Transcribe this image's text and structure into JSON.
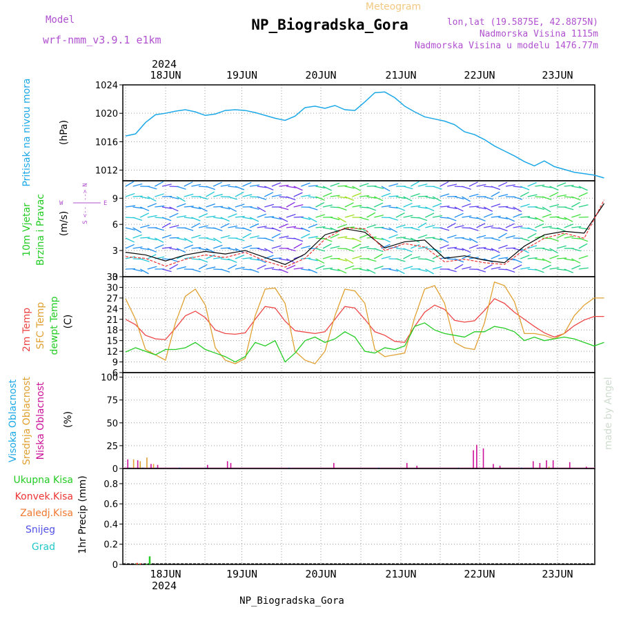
{
  "header": {
    "meteogram_label": "Meteogram",
    "station_title": "NP_Biogradska_Gora",
    "model_label": "Model",
    "model_name": "wrf-nmm_v3.9.1 e1km",
    "lonlat": "lon,lat (19.5875E, 42.8875N)",
    "elevation": "Nadmorska Visina 1115m",
    "model_elevation": "Nadmorska Visina u modelu 1476.77m",
    "year_top": "2024",
    "year_bottom": "2024",
    "footer_station": "NP_Biogradska_Gora",
    "watermark": "made by Angel"
  },
  "day_labels": [
    "18JUN",
    "19JUN",
    "20JUN",
    "21JUN",
    "22JUN",
    "23JUN"
  ],
  "compass": {
    "n": "N",
    "s": "S",
    "e": "E",
    "w": "W",
    "arrow_left": "<--",
    "arrow_right": "-->"
  },
  "colors": {
    "pressure": "#1ba8e8",
    "rain": "#22cc22",
    "conv": "#ee3333",
    "frozen": "#f07830",
    "snow": "#5050e8",
    "grad": "#20c8c8",
    "t2m": "#ee4444",
    "sfc": "#e0a030",
    "dewpt": "#22cc22",
    "high_cloud": "#1ba8e8",
    "mid_cloud": "#e0a030",
    "low_cloud": "#cc1199",
    "model_text": "#b050d0"
  },
  "chart_data": [
    {
      "type": "line",
      "name": "pressure",
      "ylabel_lines": [
        "Pritisak na nivou mora",
        "(hPa)"
      ],
      "ylim": [
        1010.5,
        1024
      ],
      "yticks": [
        "1012",
        "1016",
        "1020",
        "1024"
      ],
      "x_hours": [
        0,
        3,
        6,
        9,
        12,
        15,
        18,
        21,
        24,
        27,
        30,
        33,
        36,
        39,
        42,
        45,
        48,
        51,
        54,
        57,
        60,
        63,
        66,
        69,
        72,
        75,
        78,
        81,
        84,
        87,
        90,
        93,
        96,
        99,
        102,
        105,
        108,
        111,
        114,
        117,
        120,
        123,
        126,
        129,
        135,
        141,
        144
      ],
      "values": [
        1016.8,
        1017.1,
        1018.7,
        1019.8,
        1020.0,
        1020.3,
        1020.5,
        1020.2,
        1019.7,
        1019.9,
        1020.4,
        1020.5,
        1020.4,
        1020.1,
        1019.7,
        1019.3,
        1019.0,
        1019.6,
        1020.8,
        1021.0,
        1020.7,
        1021.1,
        1020.5,
        1020.4,
        1021.6,
        1022.9,
        1023.0,
        1022.2,
        1021.0,
        1020.2,
        1019.5,
        1019.2,
        1018.9,
        1018.4,
        1017.4,
        1017.0,
        1016.3,
        1015.4,
        1014.7,
        1014.0,
        1013.2,
        1012.6,
        1013.3,
        1012.5,
        1011.7,
        1011.3,
        1010.9
      ]
    },
    {
      "type": "line",
      "name": "wind",
      "ylabel_lines": [
        "10m Vjetar",
        "Brzina i Pravac",
        "(m/s)"
      ],
      "ylim": [
        0,
        11
      ],
      "yticks": [
        "0",
        "3",
        "6",
        "9"
      ],
      "x_hours": [
        0,
        6,
        12,
        18,
        24,
        30,
        36,
        42,
        48,
        54,
        60,
        66,
        72,
        78,
        84,
        90,
        96,
        102,
        108,
        114,
        120,
        126,
        132,
        138,
        144
      ],
      "values": [
        2.8,
        2.5,
        1.8,
        2.5,
        2.9,
        2.6,
        3.0,
        2.2,
        1.4,
        2.6,
        4.8,
        5.5,
        5.1,
        3.3,
        4.0,
        4.2,
        2.1,
        2.4,
        1.9,
        1.6,
        3.5,
        4.8,
        5.2,
        5.0,
        8.4
      ],
      "gust_values": [
        2.3,
        2.1,
        1.2,
        2.0,
        2.5,
        2.2,
        2.8,
        1.8,
        1.1,
        2.1,
        4.3,
        5.6,
        5.5,
        3.0,
        3.8,
        3.4,
        1.7,
        2.0,
        1.6,
        1.4,
        3.1,
        4.4,
        5.0,
        4.4,
        8.8
      ]
    },
    {
      "type": "line",
      "name": "temperature",
      "ylabel_lines": [
        "2m Temp",
        "SFC Temp",
        "dewpt Temp",
        "(C)"
      ],
      "ylim": [
        6,
        33
      ],
      "yticks": [
        "6",
        "9",
        "12",
        "15",
        "18",
        "21",
        "24",
        "27",
        "30",
        "33"
      ],
      "x_hours": [
        0,
        3,
        6,
        9,
        12,
        15,
        18,
        21,
        24,
        27,
        30,
        33,
        36,
        39,
        42,
        45,
        48,
        51,
        54,
        57,
        60,
        63,
        66,
        69,
        72,
        75,
        78,
        81,
        84,
        87,
        90,
        93,
        96,
        99,
        102,
        105,
        108,
        111,
        114,
        117,
        120,
        123,
        126,
        129,
        132,
        135,
        138,
        141,
        144
      ],
      "series": [
        {
          "name": "2m Temp",
          "values": [
            21,
            19.5,
            16.5,
            15.5,
            15.3,
            18.5,
            22,
            23.3,
            21.5,
            18,
            17,
            16.8,
            17.2,
            21,
            24.6,
            24.2,
            20.5,
            17.8,
            17.4,
            17,
            17.5,
            21,
            24.6,
            24.2,
            21,
            17.5,
            16.5,
            14.8,
            14.5,
            19,
            23,
            25,
            23.8,
            20.7,
            20.2,
            20.6,
            23.5,
            26.8,
            25.5,
            23,
            21,
            19,
            17.2,
            16,
            17,
            19.2,
            20.8,
            21.8,
            21.8
          ]
        },
        {
          "name": "SFC Temp",
          "values": [
            26.8,
            21,
            12.5,
            11,
            9.5,
            20,
            27.5,
            29.5,
            25,
            13,
            9.5,
            8.5,
            10,
            22,
            29.5,
            29.8,
            25.5,
            12,
            9.5,
            8.5,
            12,
            22,
            29.5,
            29,
            25.5,
            12.5,
            10.5,
            11,
            11.5,
            21.5,
            29.5,
            30.5,
            25.5,
            14.5,
            13,
            12.5,
            20,
            31.5,
            30.5,
            26,
            17,
            17,
            16.5,
            15.5,
            17,
            22,
            25,
            27,
            27
          ]
        },
        {
          "name": "dewpt Temp",
          "values": [
            11.8,
            13,
            12,
            11,
            12.5,
            12.5,
            13,
            14.5,
            12.5,
            11.5,
            10.5,
            9,
            10.5,
            14.5,
            13.5,
            15,
            9,
            11.5,
            15,
            16,
            14.5,
            15.5,
            17.5,
            16,
            12,
            11.5,
            13,
            12.5,
            13.5,
            19,
            20,
            18,
            17,
            16.5,
            16,
            17.5,
            17.5,
            19,
            18.5,
            17.5,
            15,
            16,
            15,
            15.5,
            16,
            15.5,
            14.5,
            13.5,
            14.5
          ]
        }
      ]
    },
    {
      "type": "bar",
      "name": "clouds",
      "ylabel_lines": [
        "Visoka Oblacnost",
        "Srednja Oblacnost",
        "Niska Oblacnost",
        "(%)"
      ],
      "ylim": [
        0,
        105
      ],
      "yticks": [
        "0",
        "25",
        "50",
        "75",
        "100"
      ],
      "series": [
        {
          "name": "Visoka Oblacnost",
          "x_hours": [
            1,
            5,
            9,
            16,
            24,
            49,
            76,
            100,
            119,
            122
          ],
          "values": [
            1,
            1,
            1,
            1,
            1,
            1,
            1,
            1,
            1,
            1
          ]
        },
        {
          "name": "Srednja Oblacnost",
          "x_hours": [
            2,
            4,
            6,
            8,
            127
          ],
          "values": [
            10,
            8,
            12,
            5,
            2
          ]
        },
        {
          "name": "Niska Oblacnost",
          "x_hours": [
            0,
            3,
            7,
            9,
            24,
            30,
            31,
            62,
            84,
            87,
            104,
            105,
            107,
            110,
            112,
            122,
            124,
            126,
            128,
            133,
            138
          ],
          "values": [
            10,
            9,
            5,
            4,
            4,
            8,
            6,
            6,
            6,
            3,
            20,
            26,
            22,
            5,
            3,
            8,
            6,
            9,
            9,
            7,
            2
          ]
        }
      ]
    },
    {
      "type": "bar",
      "name": "precipitation",
      "ylabel_lines": [
        "1hr Precip (mm)"
      ],
      "legend": [
        "Ukupna Kisa",
        "Konvek.Kisa",
        "Zaledj.Kisa",
        "Snijeg",
        "Grad"
      ],
      "ylim": [
        0,
        0.95
      ],
      "yticks": [
        "0",
        "0.2",
        "0.4",
        "0.6",
        "0.8"
      ],
      "series": [
        {
          "name": "Ukupna Kisa",
          "x_hours": [
            3,
            4,
            6,
            7
          ],
          "values": [
            0.01,
            0.01,
            0.005,
            0.08
          ]
        },
        {
          "name": "Konvek.Kisa",
          "x_hours": [
            3,
            4
          ],
          "values": [
            0.015,
            0.01
          ]
        }
      ]
    }
  ]
}
